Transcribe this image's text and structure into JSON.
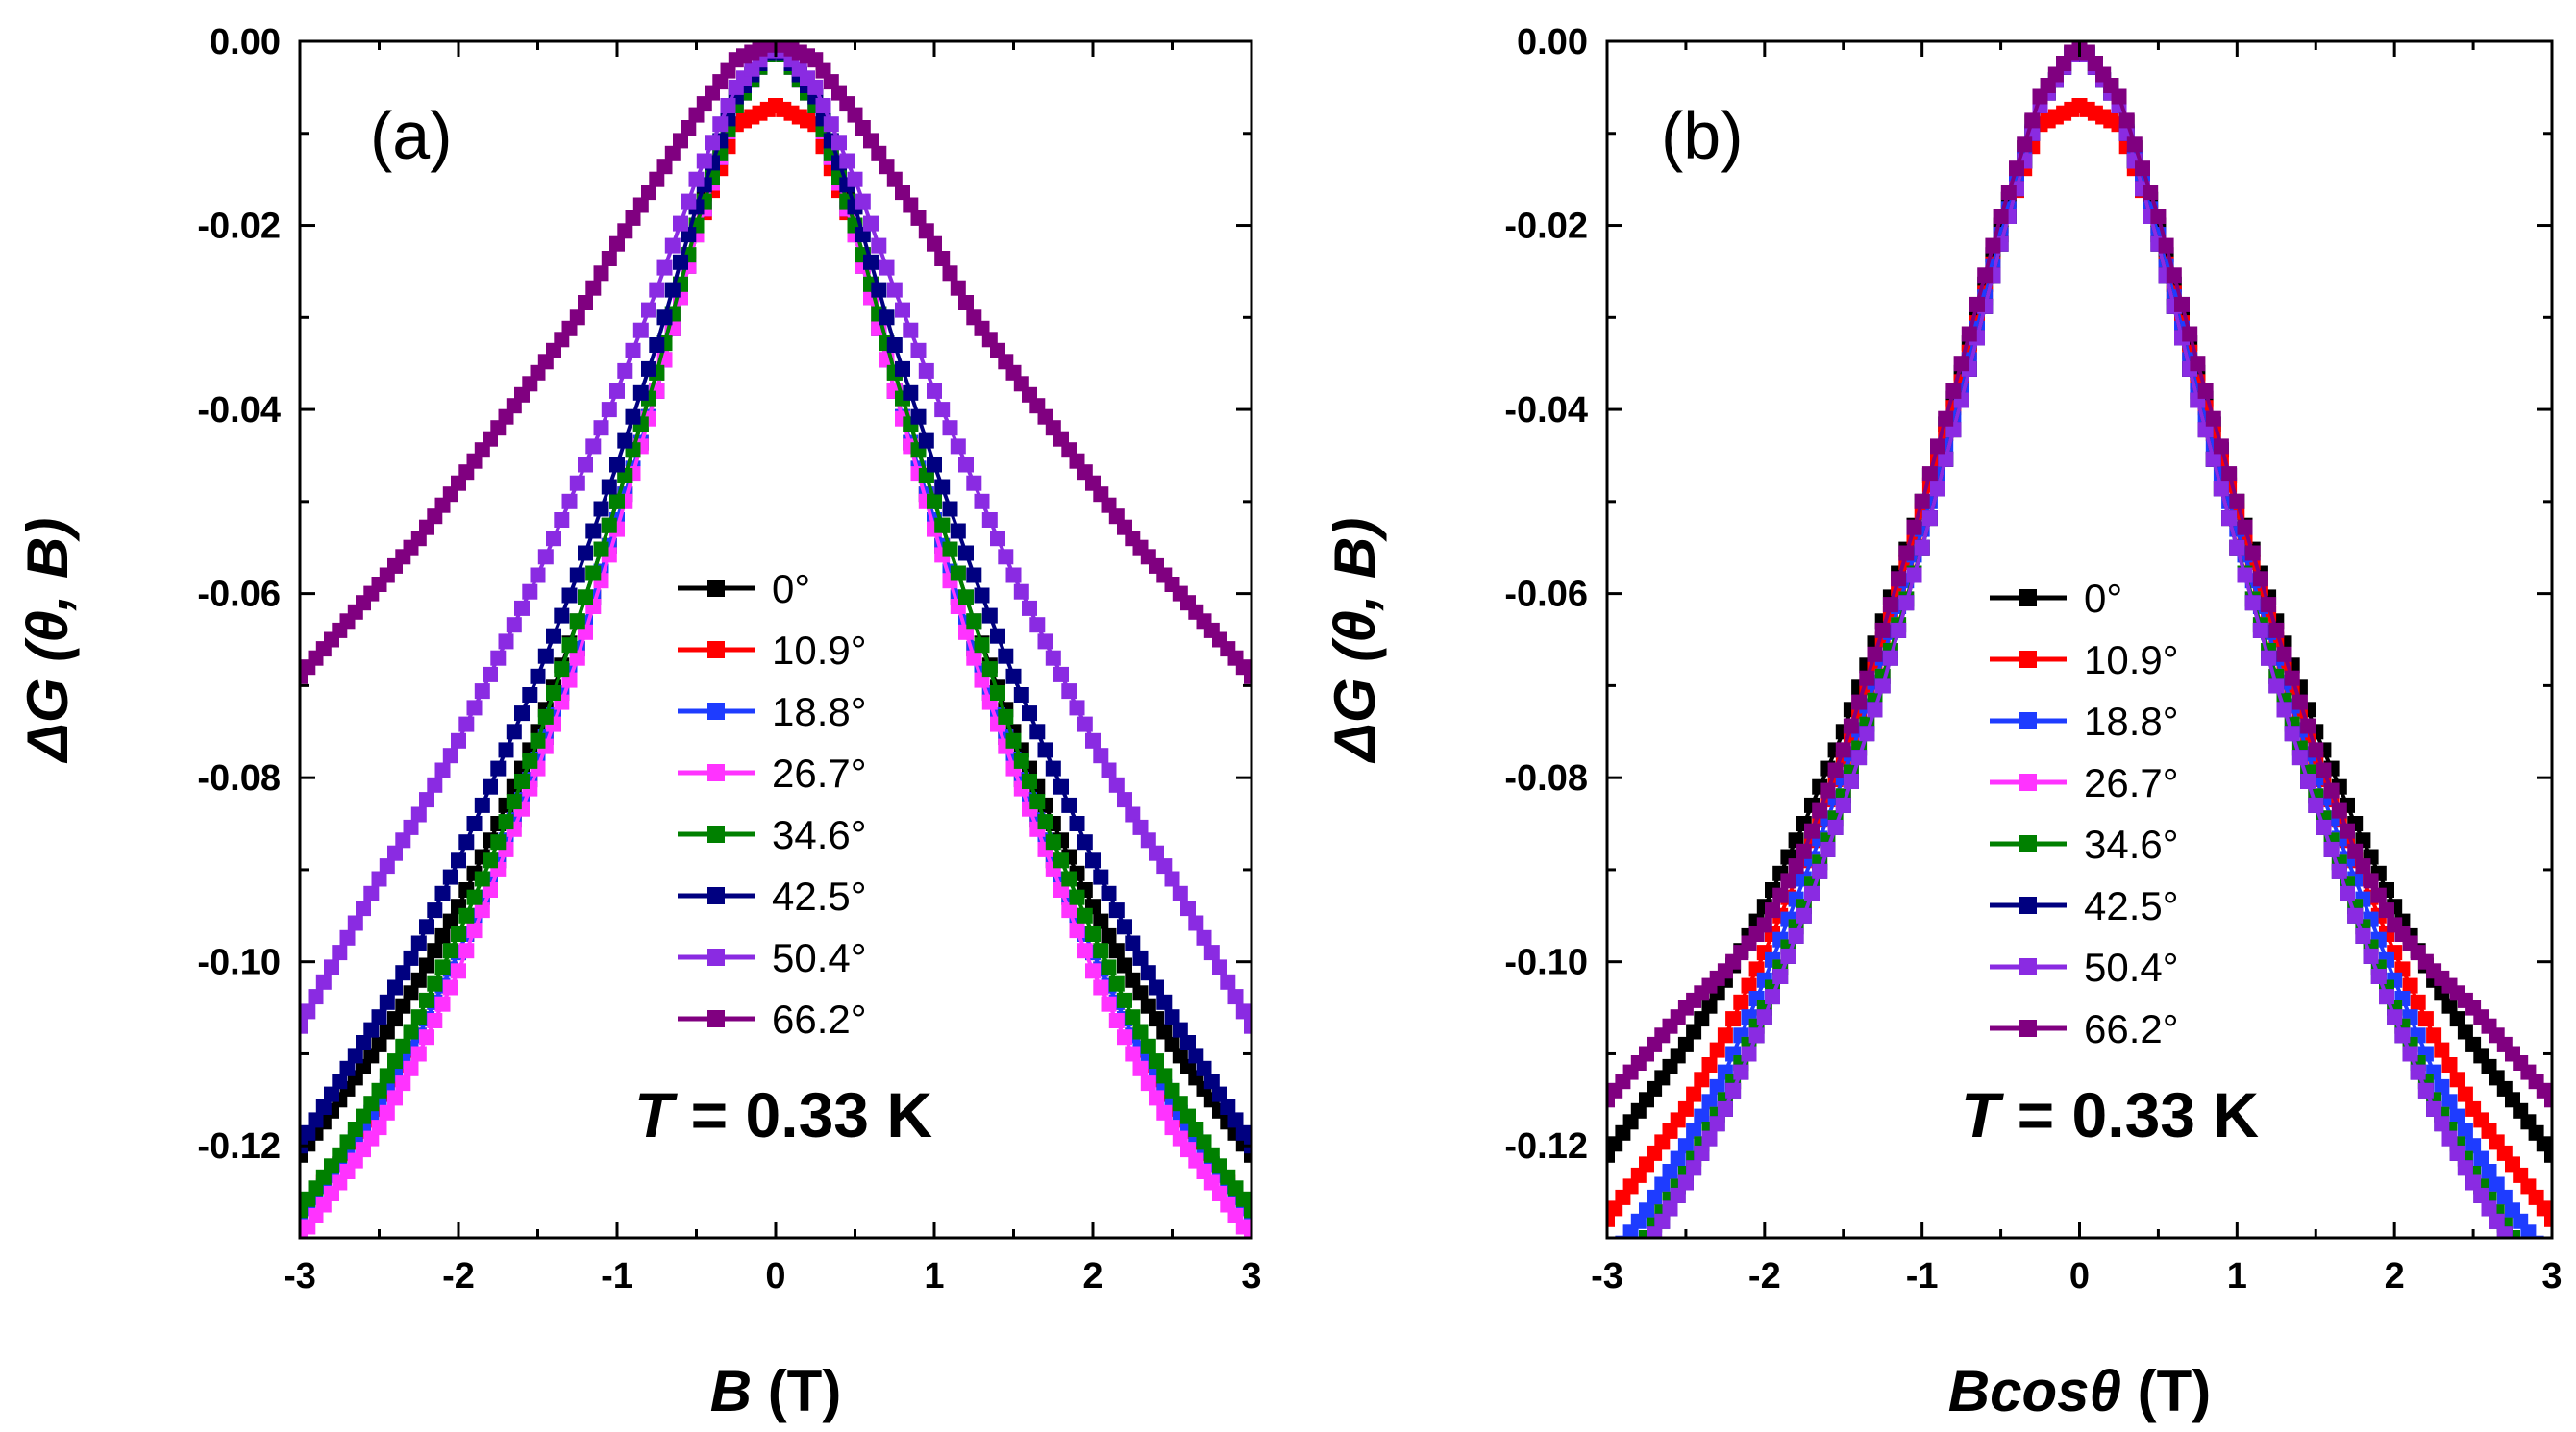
{
  "chart_data": [
    {
      "type": "scatter",
      "panel_label": "(a)",
      "xlabel_italic": "B",
      "xlabel_rest": " (T)",
      "ylabel_main": "ΔG",
      "ylabel_args": " (θ, B)",
      "xlim": [
        -3,
        3
      ],
      "ylim": [
        -0.13,
        0.0
      ],
      "xticks": [
        -3,
        -2,
        -1,
        0,
        1,
        2,
        3
      ],
      "xtick_labels": [
        "-3",
        "-2",
        "-1",
        "0",
        "1",
        "2",
        "3"
      ],
      "yticks": [
        0.0,
        -0.02,
        -0.04,
        -0.06,
        -0.08,
        -0.1,
        -0.12
      ],
      "ytick_labels": [
        "0.00",
        "-0.02",
        "-0.04",
        "-0.06",
        "-0.08",
        "-0.10",
        "-0.12"
      ],
      "annotation": {
        "italic": "T",
        "text": " = 0.33 K"
      },
      "legend_position": "center",
      "series": [
        {
          "name": "0°",
          "color": "#000000",
          "x": [
            0,
            0.25,
            0.5,
            0.75,
            1.0,
            1.25,
            1.5,
            1.75,
            2.0,
            2.25,
            2.5,
            2.75,
            3.0
          ],
          "y": [
            0,
            -0.006,
            -0.02,
            -0.036,
            -0.05,
            -0.063,
            -0.075,
            -0.085,
            -0.094,
            -0.102,
            -0.109,
            -0.115,
            -0.121
          ]
        },
        {
          "name": "10.9°",
          "color": "#ff0000",
          "x": [
            0,
            0.25,
            0.5,
            0.75,
            1.0,
            1.25,
            1.5,
            1.75,
            2.0,
            2.25,
            2.5,
            2.75,
            3.0
          ],
          "y": [
            -0.007,
            -0.009,
            -0.021,
            -0.038,
            -0.052,
            -0.066,
            -0.078,
            -0.089,
            -0.099,
            -0.108,
            -0.116,
            -0.122,
            -0.127
          ]
        },
        {
          "name": "18.8°",
          "color": "#1e3cff",
          "x": [
            0,
            0.25,
            0.5,
            0.75,
            1.0,
            1.25,
            1.5,
            1.75,
            2.0,
            2.25,
            2.5,
            2.75,
            3.0
          ],
          "y": [
            0,
            -0.007,
            -0.021,
            -0.038,
            -0.052,
            -0.066,
            -0.078,
            -0.089,
            -0.099,
            -0.108,
            -0.115,
            -0.122,
            -0.128
          ]
        },
        {
          "name": "26.7°",
          "color": "#ff33ff",
          "x": [
            0,
            0.25,
            0.5,
            0.75,
            1.0,
            1.25,
            1.5,
            1.75,
            2.0,
            2.25,
            2.5,
            2.75,
            3.0
          ],
          "y": [
            0,
            -0.007,
            -0.021,
            -0.038,
            -0.053,
            -0.067,
            -0.079,
            -0.09,
            -0.101,
            -0.11,
            -0.118,
            -0.124,
            -0.13
          ]
        },
        {
          "name": "34.6°",
          "color": "#008000",
          "x": [
            0,
            0.25,
            0.5,
            0.75,
            1.0,
            1.25,
            1.5,
            1.75,
            2.0,
            2.25,
            2.5,
            2.75,
            3.0
          ],
          "y": [
            0,
            -0.007,
            -0.02,
            -0.036,
            -0.05,
            -0.063,
            -0.076,
            -0.087,
            -0.097,
            -0.106,
            -0.114,
            -0.121,
            -0.127
          ]
        },
        {
          "name": "42.5°",
          "color": "#000080",
          "x": [
            0,
            0.25,
            0.5,
            0.75,
            1.0,
            1.25,
            1.5,
            1.75,
            2.0,
            2.25,
            2.5,
            2.75,
            3.0
          ],
          "y": [
            0,
            -0.006,
            -0.018,
            -0.033,
            -0.046,
            -0.058,
            -0.069,
            -0.079,
            -0.089,
            -0.098,
            -0.106,
            -0.113,
            -0.12
          ]
        },
        {
          "name": "50.4°",
          "color": "#8a2be2",
          "x": [
            0,
            0.25,
            0.5,
            0.75,
            1.0,
            1.25,
            1.5,
            1.75,
            2.0,
            2.25,
            2.5,
            2.75,
            3.0
          ],
          "y": [
            0,
            -0.005,
            -0.015,
            -0.027,
            -0.038,
            -0.048,
            -0.058,
            -0.067,
            -0.076,
            -0.084,
            -0.091,
            -0.099,
            -0.107
          ]
        },
        {
          "name": "66.2°",
          "color": "#800080",
          "x": [
            0,
            0.25,
            0.5,
            0.75,
            1.0,
            1.25,
            1.5,
            1.75,
            2.0,
            2.25,
            2.5,
            2.75,
            3.0
          ],
          "y": [
            0,
            -0.002,
            -0.008,
            -0.015,
            -0.022,
            -0.03,
            -0.036,
            -0.042,
            -0.048,
            -0.054,
            -0.059,
            -0.064,
            -0.069
          ]
        }
      ]
    },
    {
      "type": "scatter",
      "panel_label": "(b)",
      "xlabel_italic": "Bcosθ",
      "xlabel_rest": " (T)",
      "ylabel_main": "ΔG",
      "ylabel_args": " (θ, B)",
      "xlim": [
        -3,
        3
      ],
      "ylim": [
        -0.13,
        0.0
      ],
      "xticks": [
        -3,
        -2,
        -1,
        0,
        1,
        2,
        3
      ],
      "xtick_labels": [
        "-3",
        "-2",
        "-1",
        "0",
        "1",
        "2",
        "3"
      ],
      "yticks": [
        0.0,
        -0.02,
        -0.04,
        -0.06,
        -0.08,
        -0.1,
        -0.12
      ],
      "ytick_labels": [
        "0.00",
        "-0.02",
        "-0.04",
        "-0.06",
        "-0.08",
        "-0.10",
        "-0.12"
      ],
      "annotation": {
        "italic": "T",
        "text": " = 0.33 K"
      },
      "legend_position": "center",
      "series": [
        {
          "name": "0°",
          "color": "#000000",
          "x": [
            0,
            0.25,
            0.5,
            0.75,
            1.0,
            1.25,
            1.5,
            1.75,
            2.0,
            2.25,
            2.5,
            2.75,
            3.0
          ],
          "y": [
            0,
            -0.006,
            -0.02,
            -0.036,
            -0.05,
            -0.063,
            -0.075,
            -0.085,
            -0.094,
            -0.102,
            -0.109,
            -0.115,
            -0.121
          ]
        },
        {
          "name": "10.9°",
          "color": "#ff0000",
          "x": [
            0,
            0.25,
            0.5,
            0.75,
            1.0,
            1.25,
            1.5,
            1.75,
            2.0,
            2.25,
            2.5,
            2.75,
            3.0
          ],
          "y": [
            -0.007,
            -0.009,
            -0.021,
            -0.037,
            -0.051,
            -0.065,
            -0.078,
            -0.089,
            -0.099,
            -0.108,
            -0.116,
            -0.122,
            -0.128
          ]
        },
        {
          "name": "18.8°",
          "color": "#1e3cff",
          "x": [
            0,
            0.25,
            0.5,
            0.75,
            1.0,
            1.25,
            1.5,
            1.75,
            2.0,
            2.25,
            2.5,
            2.75,
            3.0
          ],
          "y": [
            0,
            -0.007,
            -0.021,
            -0.038,
            -0.053,
            -0.067,
            -0.08,
            -0.091,
            -0.102,
            -0.112,
            -0.12,
            -0.127,
            -0.133
          ]
        },
        {
          "name": "26.7°",
          "color": "#ff33ff",
          "x": [
            0,
            0.25,
            0.5,
            0.75,
            1.0,
            1.25,
            1.5,
            1.75,
            2.0,
            2.25,
            2.5,
            2.75,
            3.0
          ],
          "y": [
            0,
            -0.007,
            -0.022,
            -0.039,
            -0.055,
            -0.069,
            -0.082,
            -0.094,
            -0.105,
            -0.115,
            -0.123,
            -0.13,
            -0.136
          ]
        },
        {
          "name": "34.6°",
          "color": "#008000",
          "x": [
            0,
            0.25,
            0.5,
            0.75,
            1.0,
            1.25,
            1.5,
            1.75,
            2.0,
            2.25,
            2.5,
            2.75,
            3.0
          ],
          "y": [
            0,
            -0.007,
            -0.022,
            -0.039,
            -0.055,
            -0.069,
            -0.082,
            -0.094,
            -0.105,
            -0.115,
            -0.123,
            -0.13,
            -0.136
          ]
        },
        {
          "name": "42.5°",
          "color": "#000080",
          "x": [
            0,
            0.25,
            0.5,
            0.75,
            1.0,
            1.25,
            1.5,
            1.75,
            2.0,
            2.25,
            2.5,
            2.75,
            3.0
          ],
          "y": [
            0,
            -0.007,
            -0.022,
            -0.039,
            -0.055,
            -0.07,
            -0.083,
            -0.095,
            -0.106,
            -0.116,
            -0.124,
            -0.131,
            -0.137
          ]
        },
        {
          "name": "50.4°",
          "color": "#8a2be2",
          "x": [
            0,
            0.25,
            0.5,
            0.75,
            1.0,
            1.25,
            1.5,
            1.75,
            2.0,
            2.25,
            2.5,
            2.75,
            3.0
          ],
          "y": [
            0,
            -0.007,
            -0.022,
            -0.039,
            -0.055,
            -0.07,
            -0.083,
            -0.095,
            -0.106,
            -0.116,
            -0.124,
            -0.131,
            -0.137
          ]
        },
        {
          "name": "66.2°",
          "color": "#800080",
          "x": [
            0,
            0.25,
            0.5,
            0.75,
            1.0,
            1.25,
            1.5,
            1.75,
            2.0,
            2.25,
            2.5,
            2.75,
            3.0
          ],
          "y": [
            0,
            -0.006,
            -0.019,
            -0.035,
            -0.05,
            -0.064,
            -0.077,
            -0.088,
            -0.096,
            -0.101,
            -0.105,
            -0.11,
            -0.115
          ]
        }
      ]
    }
  ]
}
